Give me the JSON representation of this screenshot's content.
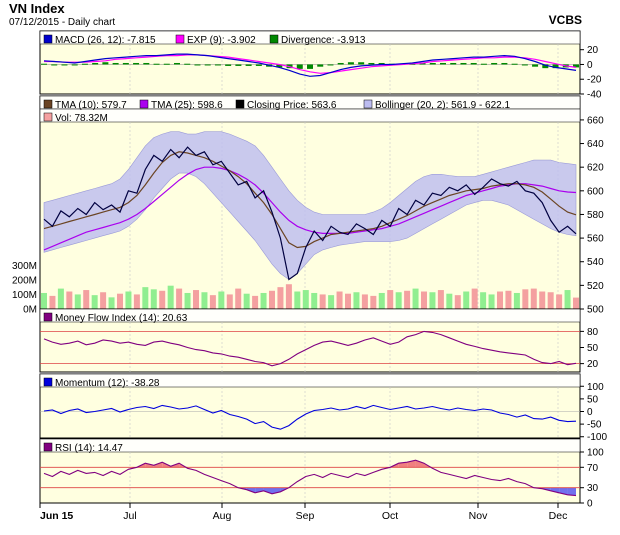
{
  "header": {
    "title": "VN Index",
    "subtitle": "07/12/2015 - Daily chart",
    "brand": "VCBS"
  },
  "colors": {
    "panel_bg": "#ffffe0",
    "macd": "#0000cc",
    "exp": "#ff00ff",
    "divergence": "#008800",
    "tma10": "#6b4423",
    "tma25": "#aa00ee",
    "close": "#000040",
    "bollinger_band": "#bcbcf0",
    "vol_up": "#90ee90",
    "vol_down": "#f4a0a0",
    "mfi": "#800080",
    "momentum": "#0000dd",
    "rsi": "#800080",
    "ref_line": "#dd4444"
  },
  "x_axis": {
    "labels": [
      "Jun 15",
      "Jul",
      "Aug",
      "Sep",
      "Oct",
      "Nov",
      "Dec"
    ]
  },
  "chart_data": [
    {
      "type": "line",
      "panel": "macd",
      "legend": [
        "MACD (26, 12): -7.815",
        "EXP (9): -3.902",
        "Divergence: -3.913"
      ],
      "yticks": [
        20,
        0,
        -20,
        -40
      ],
      "ylim": [
        -40,
        25
      ],
      "series": [
        {
          "name": "MACD (26, 12)",
          "values": [
            5,
            4,
            3,
            2,
            4,
            6,
            8,
            9,
            10,
            11,
            12,
            12,
            13,
            14,
            14,
            13,
            12,
            10,
            8,
            6,
            4,
            2,
            -1,
            -4,
            -8,
            -13,
            -16,
            -15,
            -11,
            -7,
            -4,
            -2,
            -1,
            0,
            0,
            1,
            2,
            4,
            6,
            7,
            8,
            9,
            10,
            10,
            11,
            12,
            11,
            8,
            4,
            -1,
            -4,
            -6,
            -8
          ]
        },
        {
          "name": "EXP (9)",
          "values": [
            4,
            4,
            3,
            3,
            3,
            4,
            5,
            7,
            8,
            9,
            10,
            11,
            12,
            12,
            13,
            13,
            12,
            11,
            10,
            8,
            6,
            4,
            2,
            0,
            -3,
            -7,
            -10,
            -12,
            -11,
            -9,
            -7,
            -5,
            -3,
            -2,
            -1,
            0,
            1,
            2,
            4,
            5,
            6,
            7,
            8,
            9,
            9,
            10,
            10,
            9,
            7,
            4,
            1,
            -2,
            -4
          ]
        },
        {
          "name": "Divergence",
          "values": [
            1,
            0,
            0,
            -1,
            1,
            2,
            3,
            2,
            2,
            2,
            2,
            1,
            1,
            2,
            1,
            0,
            0,
            -1,
            -2,
            -2,
            -2,
            -2,
            -3,
            -4,
            -5,
            -6,
            -6,
            -3,
            0,
            2,
            3,
            3,
            2,
            2,
            1,
            1,
            1,
            2,
            2,
            2,
            2,
            2,
            2,
            1,
            2,
            2,
            1,
            -1,
            -3,
            -5,
            -5,
            -4,
            -4
          ]
        }
      ]
    },
    {
      "type": "line",
      "panel": "price",
      "legend": [
        "TMA (10): 579.7",
        "TMA (25): 598.6",
        "Closing Price: 563.6",
        "Bollinger (20, 2): 561.9 - 622.1"
      ],
      "volume_legend": "Vol: 78.32M",
      "yticks": [
        660,
        640,
        620,
        600,
        580,
        560,
        540,
        520,
        500
      ],
      "ylim": [
        500,
        665
      ],
      "vol_ticks": [
        "300M",
        "200M",
        "100M",
        "0M"
      ],
      "vol_ylim": [
        0,
        350
      ],
      "series": [
        {
          "name": "Closing Price",
          "values": [
            576,
            570,
            583,
            578,
            585,
            580,
            590,
            584,
            588,
            582,
            600,
            598,
            618,
            630,
            625,
            635,
            628,
            637,
            630,
            633,
            622,
            625,
            615,
            605,
            608,
            594,
            600,
            582,
            560,
            525,
            530,
            552,
            566,
            558,
            570,
            565,
            563,
            572,
            568,
            563,
            575,
            570,
            585,
            580,
            592,
            588,
            598,
            596,
            603,
            600,
            605,
            597,
            603,
            610,
            606,
            604,
            608,
            600,
            598,
            590,
            575,
            565,
            570,
            563.6
          ]
        },
        {
          "name": "TMA (10)",
          "values": [
            568,
            570,
            572,
            574,
            576,
            578,
            580,
            582,
            584,
            586,
            590,
            596,
            605,
            615,
            624,
            630,
            633,
            632,
            630,
            628,
            625,
            621,
            617,
            612,
            606,
            598,
            590,
            580,
            568,
            556,
            552,
            553,
            557,
            560,
            563,
            564,
            565,
            566,
            567,
            568,
            570,
            573,
            576,
            579,
            583,
            587,
            590,
            593,
            596,
            598,
            600,
            601,
            602,
            604,
            605,
            606,
            606,
            605,
            603,
            599,
            593,
            587,
            582,
            579.7
          ]
        },
        {
          "name": "TMA (25)",
          "values": [
            550,
            553,
            556,
            559,
            562,
            565,
            567,
            569,
            571,
            573,
            576,
            580,
            585,
            591,
            597,
            603,
            609,
            614,
            618,
            620,
            620,
            619,
            617,
            614,
            610,
            605,
            598,
            590,
            582,
            575,
            570,
            567,
            565,
            564,
            564,
            564,
            564,
            565,
            566,
            567,
            568,
            570,
            572,
            575,
            578,
            581,
            584,
            587,
            590,
            593,
            596,
            598,
            600,
            602,
            604,
            605,
            606,
            606,
            605,
            604,
            602,
            600,
            599,
            598.6
          ]
        },
        {
          "name": "Bollinger upper",
          "values": [
            590,
            592,
            594,
            596,
            598,
            600,
            602,
            604,
            606,
            610,
            618,
            628,
            638,
            645,
            648,
            650,
            650,
            648,
            648,
            650,
            650,
            650,
            648,
            645,
            642,
            638,
            630,
            620,
            610,
            600,
            592,
            586,
            582,
            580,
            580,
            580,
            580,
            580,
            580,
            582,
            585,
            590,
            596,
            602,
            608,
            612,
            614,
            614,
            613,
            612,
            612,
            612,
            614,
            616,
            618,
            620,
            622,
            624,
            626,
            626,
            626,
            624,
            623,
            622.1
          ]
        },
        {
          "name": "Bollinger lower",
          "values": [
            548,
            550,
            552,
            554,
            556,
            558,
            560,
            562,
            564,
            566,
            570,
            576,
            584,
            594,
            602,
            610,
            615,
            615,
            612,
            606,
            598,
            590,
            582,
            574,
            566,
            558,
            548,
            538,
            530,
            525,
            530,
            538,
            546,
            550,
            552,
            554,
            555,
            556,
            557,
            557,
            557,
            557,
            558,
            560,
            564,
            568,
            572,
            576,
            580,
            584,
            588,
            590,
            592,
            592,
            590,
            588,
            584,
            580,
            576,
            572,
            568,
            565,
            563,
            561.9
          ]
        },
        {
          "name": "Vol",
          "values": [
            110,
            90,
            140,
            120,
            100,
            130,
            95,
            115,
            80,
            105,
            120,
            100,
            150,
            135,
            125,
            160,
            140,
            110,
            130,
            115,
            95,
            120,
            100,
            140,
            105,
            90,
            110,
            125,
            150,
            170,
            120,
            130,
            110,
            100,
            95,
            120,
            105,
            115,
            100,
            90,
            110,
            130,
            115,
            125,
            140,
            120,
            115,
            130,
            105,
            95,
            120,
            140,
            115,
            100,
            120,
            125,
            110,
            135,
            140,
            120,
            115,
            100,
            130,
            78.32
          ]
        }
      ]
    },
    {
      "type": "line",
      "panel": "mfi",
      "legend": [
        "Money Flow Index (14): 20.63"
      ],
      "yticks": [
        80,
        50,
        20
      ],
      "ylim": [
        10,
        90
      ],
      "reference_lines": [
        80,
        20
      ],
      "series": [
        {
          "name": "Money Flow Index (14)",
          "values": [
            66,
            60,
            56,
            58,
            62,
            55,
            58,
            64,
            62,
            58,
            60,
            56,
            54,
            60,
            62,
            58,
            55,
            50,
            46,
            44,
            40,
            38,
            34,
            32,
            28,
            24,
            22,
            16,
            20,
            28,
            38,
            46,
            54,
            60,
            62,
            58,
            54,
            58,
            64,
            68,
            62,
            56,
            60,
            70,
            74,
            80,
            78,
            74,
            68,
            62,
            56,
            52,
            48,
            45,
            42,
            40,
            38,
            36,
            28,
            22,
            20,
            24,
            18,
            20.63
          ]
        }
      ]
    },
    {
      "type": "line",
      "panel": "momentum",
      "legend": [
        "Momentum (12): -38.28"
      ],
      "yticks": [
        100,
        50,
        0,
        -50,
        -100
      ],
      "ylim": [
        -105,
        105
      ],
      "series": [
        {
          "name": "Momentum (12)",
          "values": [
            2,
            6,
            -8,
            4,
            10,
            -4,
            0,
            6,
            12,
            -2,
            8,
            16,
            20,
            12,
            24,
            18,
            10,
            14,
            22,
            8,
            -6,
            4,
            -12,
            -20,
            -30,
            -48,
            -40,
            -62,
            -70,
            -56,
            -30,
            -10,
            4,
            8,
            14,
            6,
            10,
            20,
            12,
            24,
            16,
            8,
            14,
            20,
            10,
            14,
            20,
            12,
            6,
            14,
            8,
            4,
            10,
            6,
            -6,
            -12,
            -22,
            -14,
            -28,
            -30,
            -22,
            -35,
            -40,
            -38.28
          ]
        }
      ]
    },
    {
      "type": "line",
      "panel": "rsi",
      "legend": [
        "RSI (14): 14.47"
      ],
      "yticks": [
        100,
        70,
        30,
        0
      ],
      "ylim": [
        0,
        100
      ],
      "reference_lines": [
        70,
        30
      ],
      "series": [
        {
          "name": "RSI (14)",
          "values": [
            58,
            52,
            62,
            56,
            64,
            58,
            60,
            54,
            62,
            56,
            66,
            70,
            78,
            74,
            80,
            72,
            78,
            68,
            64,
            56,
            50,
            44,
            38,
            30,
            26,
            20,
            24,
            18,
            22,
            30,
            42,
            52,
            56,
            50,
            58,
            54,
            50,
            58,
            54,
            60,
            66,
            70,
            78,
            80,
            84,
            78,
            68,
            60,
            56,
            52,
            48,
            54,
            50,
            46,
            44,
            48,
            42,
            38,
            30,
            28,
            24,
            20,
            16,
            14.47
          ]
        }
      ]
    }
  ]
}
